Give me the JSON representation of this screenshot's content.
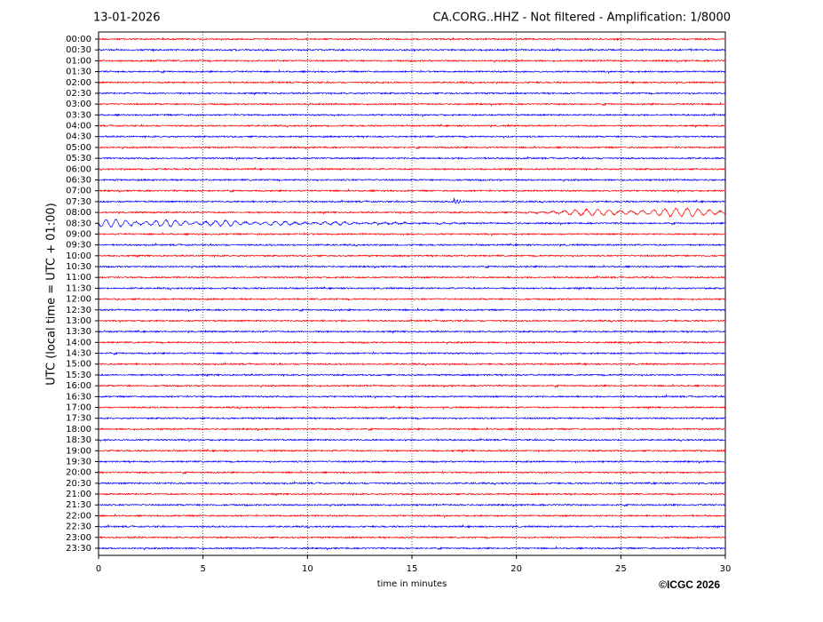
{
  "chart_data": {
    "type": "helicorder",
    "date": "13-01-2026",
    "title": "CA.CORG..HHZ - Not filtered - Amplification: 1/8000",
    "ylabel": "UTC (local time = UTC + 01:00)",
    "xlabel": "time in minutes",
    "copyright": "©ICGC 2026",
    "categories": [
      "00:00",
      "00:30",
      "01:00",
      "01:30",
      "02:00",
      "02:30",
      "03:00",
      "03:30",
      "04:00",
      "04:30",
      "05:00",
      "05:30",
      "06:00",
      "06:30",
      "07:00",
      "07:30",
      "08:00",
      "08:30",
      "09:00",
      "09:30",
      "10:00",
      "10:30",
      "11:00",
      "11:30",
      "12:00",
      "12:30",
      "13:00",
      "13:30",
      "14:00",
      "14:30",
      "15:00",
      "15:30",
      "16:00",
      "16:30",
      "17:00",
      "17:30",
      "18:00",
      "18:30",
      "19:00",
      "19:30",
      "20:00",
      "20:30",
      "21:00",
      "21:30",
      "22:00",
      "22:30",
      "23:00",
      "23:30"
    ],
    "colors": [
      "#ff0000",
      "#0000ff"
    ],
    "xlim": [
      0,
      30
    ],
    "xticks": [
      0,
      5,
      10,
      15,
      20,
      25,
      30
    ],
    "grid": true
  }
}
